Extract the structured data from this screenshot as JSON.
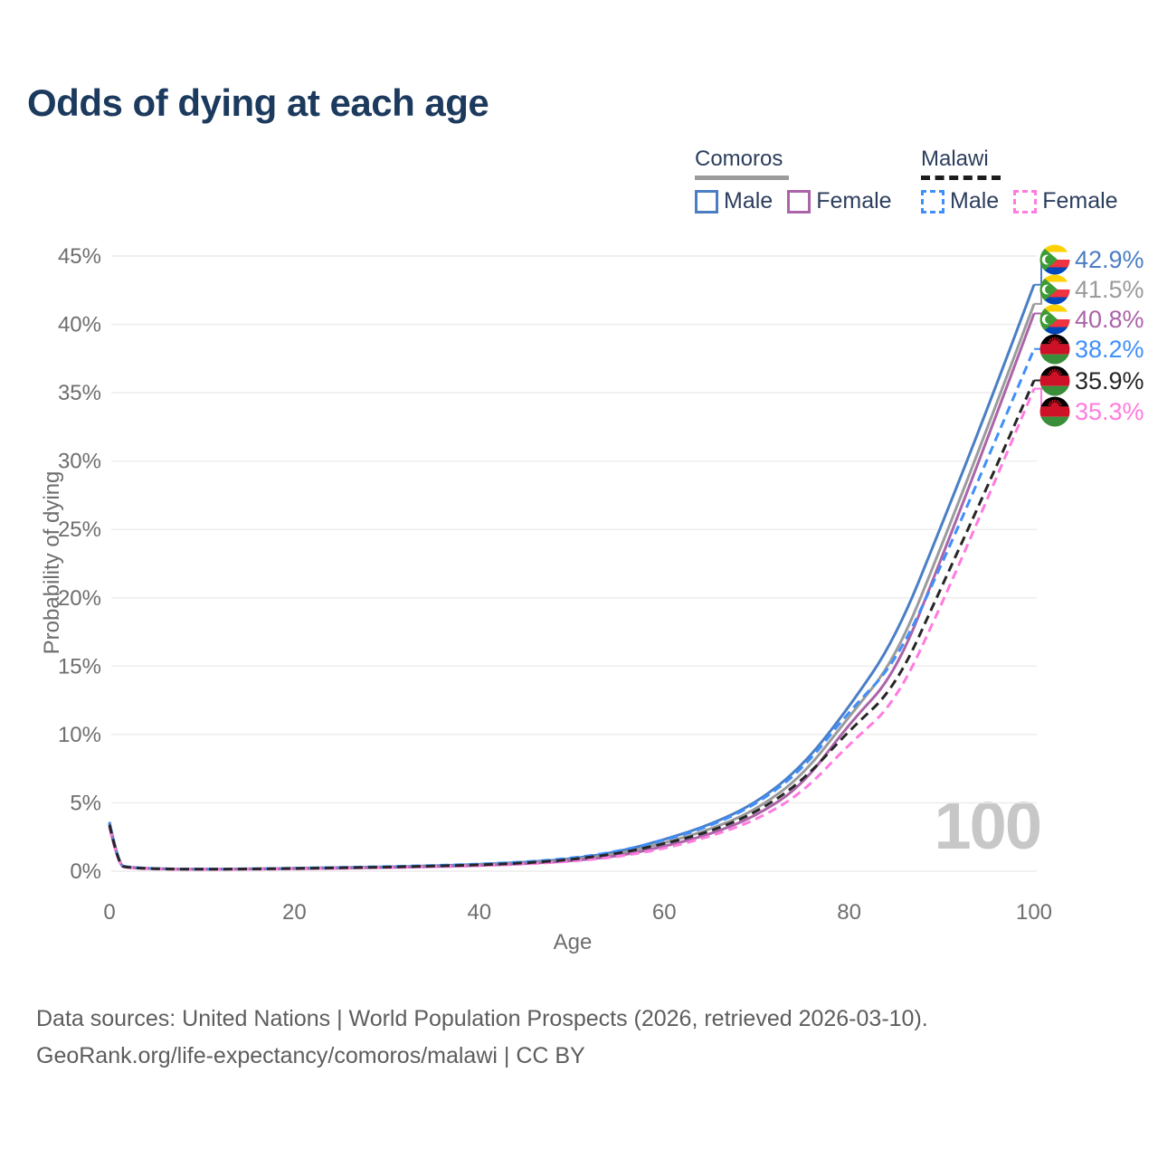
{
  "header": {
    "title": "Odds of dying at each age"
  },
  "legend": {
    "groups": [
      {
        "label": "Comoros",
        "line_style": "solid",
        "line_color": "#9b9b9b",
        "items": [
          {
            "label": "Male",
            "color": "#4a7ec4",
            "dash": false
          },
          {
            "label": "Female",
            "color": "#ab64a8",
            "dash": false
          }
        ]
      },
      {
        "label": "Malawi",
        "line_style": "dashed",
        "line_color": "#1c1c1c",
        "items": [
          {
            "label": "Male",
            "color": "#3f8ffb",
            "dash": true
          },
          {
            "label": "Female",
            "color": "#ff7bdf",
            "dash": true
          }
        ]
      }
    ]
  },
  "chart_data": {
    "type": "line",
    "xlabel": "Age",
    "ylabel": "Probability of dying",
    "watermark": "100",
    "xlim": [
      0,
      100
    ],
    "ylim_pct": [
      0,
      45
    ],
    "x_ticks": [
      0,
      20,
      40,
      60,
      80,
      100
    ],
    "y_ticks_pct": [
      0,
      5,
      10,
      15,
      20,
      25,
      30,
      35,
      40,
      45
    ],
    "grid": "horizontal-only",
    "legend_position": "top-right",
    "ages": [
      0,
      1,
      2,
      5,
      10,
      15,
      20,
      25,
      30,
      35,
      40,
      45,
      50,
      55,
      60,
      65,
      70,
      75,
      80,
      85,
      90,
      95,
      100
    ],
    "series": [
      {
        "id": "comoros-male",
        "country": "Comoros",
        "group": "Male",
        "flag": "comoros",
        "color": "#4a7ec4",
        "dash": false,
        "end_label": "42.9%",
        "values_pct": [
          3.6,
          0.45,
          0.3,
          0.18,
          0.15,
          0.17,
          0.22,
          0.27,
          0.32,
          0.4,
          0.5,
          0.65,
          0.9,
          1.4,
          2.3,
          3.4,
          5.0,
          7.7,
          12.0,
          17.0,
          25.3,
          33.9,
          42.9
        ]
      },
      {
        "id": "comoros-both",
        "country": "Comoros",
        "group": "Both",
        "flag": "comoros",
        "color": "#9b9b9b",
        "dash": false,
        "end_label": "41.5%",
        "values_pct": [
          3.5,
          0.42,
          0.28,
          0.17,
          0.14,
          0.16,
          0.2,
          0.25,
          0.3,
          0.37,
          0.46,
          0.6,
          0.83,
          1.25,
          2.05,
          3.05,
          4.5,
          7.0,
          11.3,
          15.5,
          23.8,
          32.5,
          41.5
        ]
      },
      {
        "id": "comoros-female",
        "country": "Comoros",
        "group": "Female",
        "flag": "comoros",
        "color": "#ab64a8",
        "dash": false,
        "end_label": "40.8%",
        "values_pct": [
          3.3,
          0.4,
          0.26,
          0.16,
          0.13,
          0.15,
          0.18,
          0.22,
          0.27,
          0.33,
          0.42,
          0.55,
          0.75,
          1.1,
          1.8,
          2.7,
          4.05,
          6.3,
          10.8,
          14.4,
          22.9,
          31.7,
          40.8
        ]
      },
      {
        "id": "malawi-male",
        "country": "Malawi",
        "group": "Male",
        "flag": "malawi",
        "color": "#3f8ffb",
        "dash": true,
        "end_label": "38.2%",
        "values_pct": [
          3.5,
          0.44,
          0.29,
          0.18,
          0.15,
          0.17,
          0.22,
          0.28,
          0.34,
          0.42,
          0.52,
          0.68,
          0.95,
          1.45,
          2.25,
          3.3,
          4.9,
          7.45,
          11.7,
          15.2,
          22.4,
          30.2,
          38.2
        ]
      },
      {
        "id": "malawi-female",
        "country": "Malawi",
        "group": "Female",
        "flag": "malawi",
        "color": "#ff7bdf",
        "dash": true,
        "end_label": "35.3%",
        "values_pct": [
          3.2,
          0.38,
          0.25,
          0.15,
          0.12,
          0.14,
          0.17,
          0.21,
          0.26,
          0.32,
          0.4,
          0.52,
          0.72,
          1.05,
          1.65,
          2.55,
          3.75,
          5.75,
          9.3,
          12.3,
          19.5,
          27.3,
          35.3
        ]
      },
      {
        "id": "malawi-both",
        "country": "Malawi",
        "group": "Both",
        "flag": "malawi",
        "color": "#262626",
        "dash": true,
        "end_label": "35.9%",
        "values_pct": [
          3.4,
          0.42,
          0.27,
          0.17,
          0.14,
          0.16,
          0.2,
          0.25,
          0.3,
          0.37,
          0.46,
          0.6,
          0.85,
          1.3,
          2.0,
          2.9,
          4.3,
          6.6,
          10.3,
          13.4,
          20.8,
          28.2,
          35.9
        ]
      }
    ]
  },
  "footer": {
    "line1": "Data sources: United Nations | World Population Prospects (2026, retrieved 2026-03-10).",
    "line2": "GeoRank.org/life-expectancy/comoros/malawi | CC BY"
  }
}
